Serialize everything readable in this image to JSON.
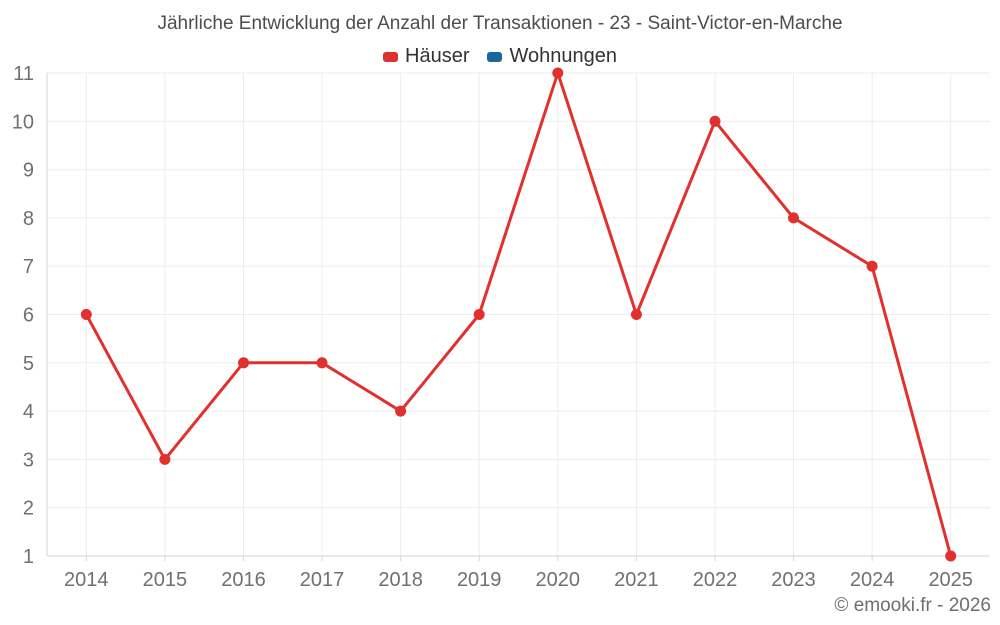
{
  "title": "Jährliche Entwicklung der Anzahl der Transaktionen - 23 - Saint-Victor-en-Marche",
  "footer": "© emooki.fr - 2026",
  "legend": [
    {
      "label": "Häuser",
      "color": "#e0312e"
    },
    {
      "label": "Wohnungen",
      "color": "#17699b"
    }
  ],
  "chart_data": {
    "type": "line",
    "title": "Jährliche Entwicklung der Anzahl der Transaktionen - 23 - Saint-Victor-en-Marche",
    "categories": [
      "2014",
      "2015",
      "2016",
      "2017",
      "2018",
      "2019",
      "2020",
      "2021",
      "2022",
      "2023",
      "2024",
      "2025"
    ],
    "series": [
      {
        "name": "Häuser",
        "color": "#e0312e",
        "values": [
          6,
          3,
          5,
          5,
          4,
          6,
          11,
          6,
          10,
          8,
          7,
          1
        ]
      },
      {
        "name": "Wohnungen",
        "color": "#17699b",
        "values": []
      }
    ],
    "xlabel": "",
    "ylabel": "",
    "ylim": [
      1,
      11
    ],
    "y_ticks": [
      1,
      2,
      3,
      4,
      5,
      6,
      7,
      8,
      9,
      10,
      11
    ],
    "grid": true,
    "legend_position": "top",
    "marker_radius": 5.5,
    "line_width": 3,
    "colors": {
      "grid": "#ececec",
      "axis": "#d6d6d6",
      "tick_text": "#707070"
    }
  }
}
